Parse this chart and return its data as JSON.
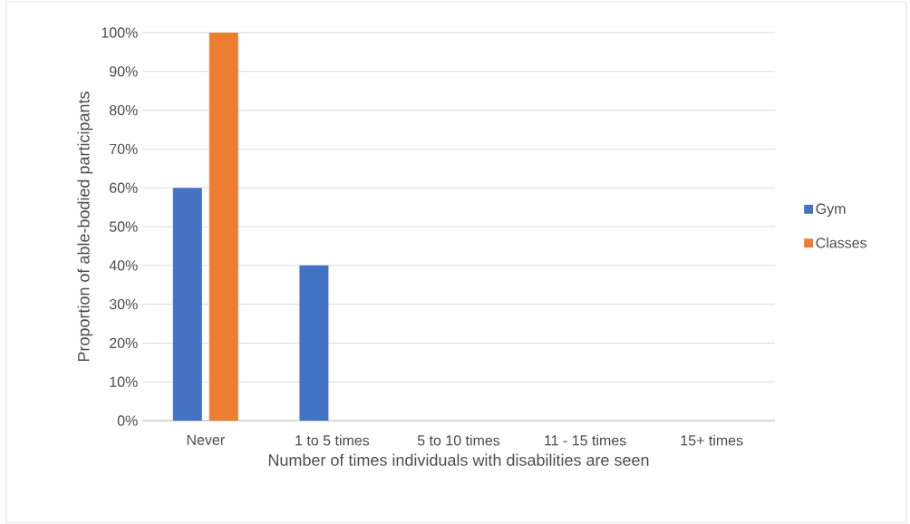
{
  "chart_data": {
    "type": "bar",
    "xlabel": "Number of times individuals with disabilities are seen",
    "ylabel": "Proportion of able-bodied participants",
    "categories": [
      "Never",
      "1 to 5 times",
      "5 to 10 times",
      "11 - 15 times",
      "15+ times"
    ],
    "series": [
      {
        "name": "Gym",
        "color": "#4472c4",
        "values": [
          60,
          40,
          0,
          0,
          0
        ]
      },
      {
        "name": "Classes",
        "color": "#ed7d31",
        "values": [
          100,
          0,
          0,
          0,
          0
        ]
      }
    ],
    "ylim": [
      0,
      100
    ],
    "yticks": [
      {
        "value": 0,
        "label": "0%"
      },
      {
        "value": 10,
        "label": "10%"
      },
      {
        "value": 20,
        "label": "20%"
      },
      {
        "value": 30,
        "label": "30%"
      },
      {
        "value": 40,
        "label": "40%"
      },
      {
        "value": 50,
        "label": "50%"
      },
      {
        "value": 60,
        "label": "60%"
      },
      {
        "value": 70,
        "label": "70%"
      },
      {
        "value": 80,
        "label": "80%"
      },
      {
        "value": 90,
        "label": "90%"
      },
      {
        "value": 100,
        "label": "100%"
      }
    ],
    "grid": "y",
    "legend": "right"
  }
}
